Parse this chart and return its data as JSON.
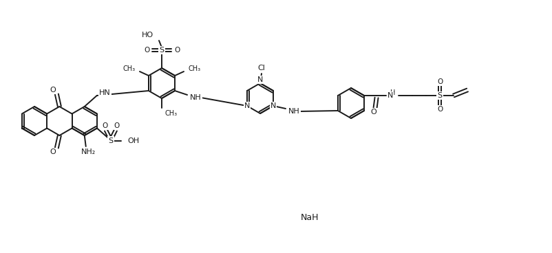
{
  "bg": "#ffffff",
  "lc": "#1a1a1a",
  "lw": 1.4,
  "fs": 8.0
}
